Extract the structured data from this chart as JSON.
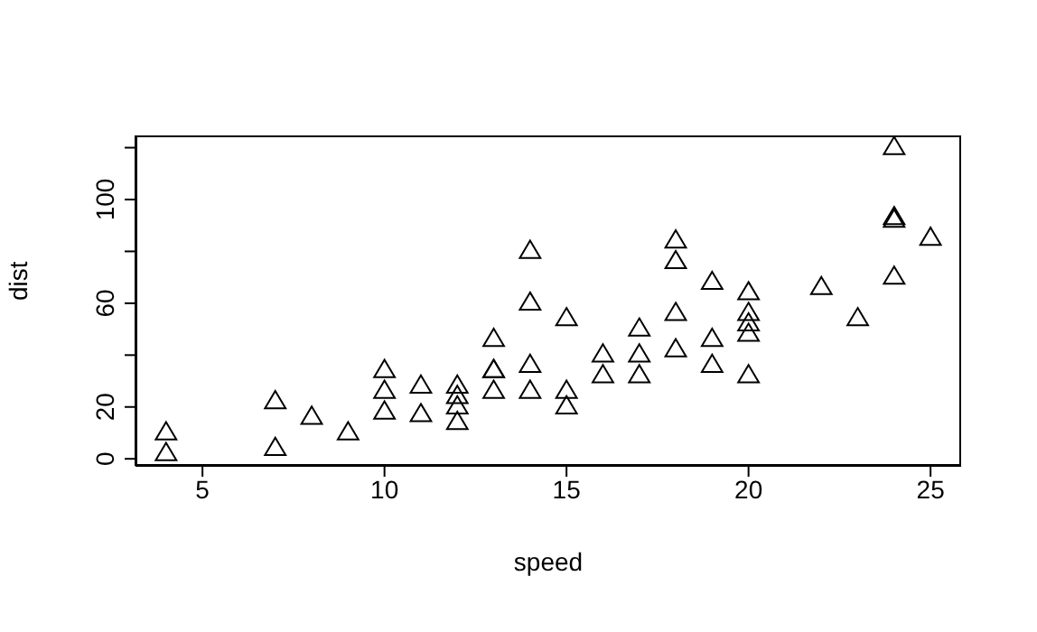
{
  "chart_data": {
    "type": "scatter",
    "xlabel": "speed",
    "ylabel": "dist",
    "marker": "triangle",
    "color": "#000000",
    "x": [
      4,
      4,
      7,
      7,
      8,
      9,
      10,
      10,
      10,
      11,
      11,
      12,
      12,
      12,
      12,
      13,
      13,
      13,
      13,
      14,
      14,
      14,
      14,
      15,
      15,
      15,
      16,
      16,
      17,
      17,
      17,
      18,
      18,
      18,
      18,
      19,
      19,
      19,
      20,
      20,
      20,
      20,
      20,
      22,
      23,
      24,
      24,
      24,
      24,
      25
    ],
    "values": [
      2,
      10,
      4,
      22,
      16,
      10,
      18,
      26,
      34,
      17,
      28,
      14,
      20,
      24,
      28,
      26,
      34,
      34,
      46,
      26,
      36,
      60,
      80,
      20,
      26,
      54,
      32,
      40,
      32,
      40,
      50,
      42,
      56,
      76,
      84,
      36,
      46,
      68,
      32,
      48,
      52,
      56,
      64,
      66,
      54,
      70,
      92,
      93,
      120,
      85
    ],
    "xlim": [
      3.16,
      25.84
    ],
    "xticks": [
      5,
      10,
      15,
      20,
      25
    ],
    "ylim": [
      -2.72,
      124.72
    ],
    "yticks": [
      0,
      20,
      {
        "value": 40,
        "label": null
      },
      60,
      {
        "value": 80,
        "label": null
      },
      100,
      {
        "value": 120,
        "label": null
      }
    ],
    "grid": false
  }
}
